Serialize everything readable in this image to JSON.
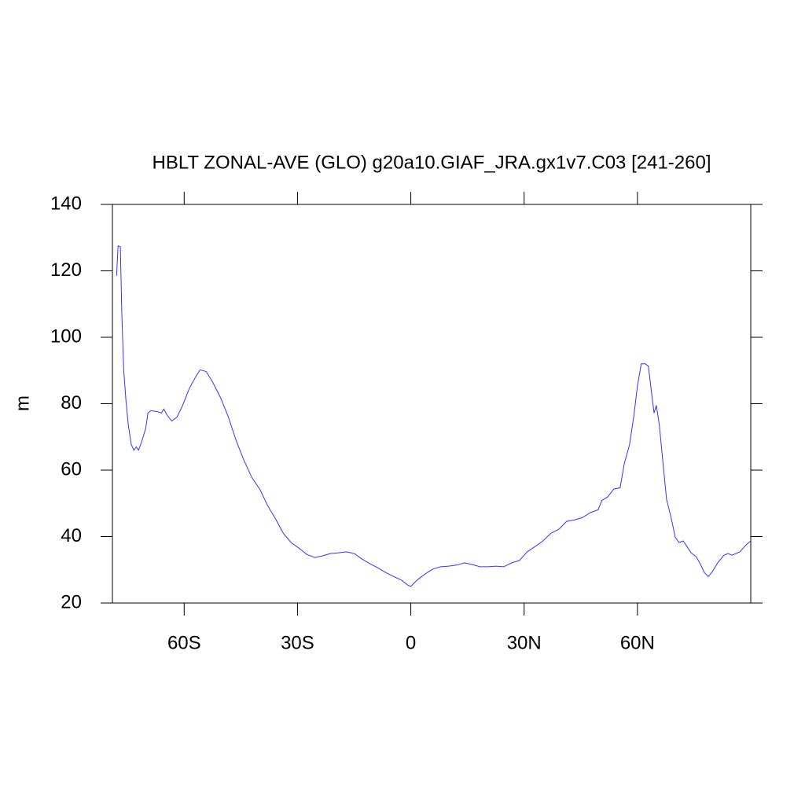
{
  "chart_data": {
    "type": "line",
    "title": "HBLT ZONAL-AVE (GLO) g20a10.GIAF_JRA.gx1v7.C03 [241-260]",
    "y_label": "m",
    "xlim": [
      -79,
      90
    ],
    "ylim": [
      20,
      140
    ],
    "xticks": [
      {
        "value": -60,
        "label": "60S"
      },
      {
        "value": -30,
        "label": "30S"
      },
      0,
      {
        "value": 30,
        "label": "30N"
      },
      {
        "value": 60,
        "label": "60N"
      }
    ],
    "yticks": [
      20,
      40,
      60,
      80,
      100,
      120,
      140
    ],
    "series": [
      {
        "color": "#3333ff",
        "x": [
          -77.9,
          -77.5,
          -76.9,
          -76.5,
          -76,
          -75.4,
          -74.8,
          -74,
          -73.3,
          -72.7,
          -72.1,
          -71.3,
          -70.2,
          -69.6,
          -68.8,
          -67.1,
          -66,
          -65.4,
          -64.6,
          -63.3,
          -61.9,
          -60.4,
          -58.75,
          -57.1,
          -55.8,
          -54.2,
          -52.5,
          -50.4,
          -48.3,
          -46.25,
          -44.2,
          -42.1,
          -40,
          -37.9,
          -35.8,
          -33.75,
          -31.7,
          -29.6,
          -27.5,
          -25.4,
          -23.3,
          -21.25,
          -19.2,
          -17.1,
          -15,
          -12.9,
          -10.8,
          -8.75,
          -6.7,
          -4.6,
          -2.5,
          -0.8,
          0,
          1.7,
          3.75,
          5.8,
          7.9,
          10,
          12.1,
          14.2,
          16.25,
          18.3,
          20.4,
          22.5,
          24.6,
          26.7,
          28.75,
          30.8,
          32.9,
          35,
          37.1,
          39.2,
          41.25,
          43.3,
          45.4,
          47.5,
          49.6,
          50.6,
          52.1,
          53.75,
          55.4,
          56.5,
          57.9,
          59,
          60,
          61,
          62.1,
          62.9,
          63.75,
          64.4,
          65,
          65.8,
          66.7,
          67.7,
          69,
          70,
          71,
          72.1,
          73.1,
          74.2,
          75.6,
          76.7,
          77.7,
          78.75,
          79.8,
          81.25,
          82.9,
          84,
          85,
          87.1,
          88.75,
          90
        ],
        "values": [
          118.5,
          127.5,
          127.3,
          106.7,
          90,
          80.7,
          73.6,
          67.7,
          66,
          67,
          66,
          68.4,
          72.5,
          77.2,
          77.9,
          77.6,
          77.2,
          78.4,
          76.7,
          74.8,
          76,
          79.5,
          84.3,
          87.8,
          90.2,
          89.7,
          86.6,
          81.9,
          76,
          68.9,
          63,
          57.8,
          54.3,
          49.3,
          45.3,
          41,
          38.2,
          36.5,
          34.6,
          33.7,
          34.2,
          34.9,
          35.1,
          35.4,
          34.9,
          33.2,
          31.8,
          30.6,
          29.2,
          28,
          26.9,
          25.4,
          25,
          26.9,
          28.7,
          30.2,
          30.9,
          31.1,
          31.4,
          32.1,
          31.6,
          30.9,
          30.9,
          31.1,
          30.9,
          32.1,
          32.8,
          35.4,
          37,
          38.7,
          41,
          42.2,
          44.6,
          45,
          45.7,
          47.2,
          48.1,
          50.9,
          51.9,
          54.3,
          54.7,
          61.8,
          67.7,
          76,
          85.4,
          92,
          92,
          91.3,
          83.1,
          77.2,
          79.5,
          73.6,
          63,
          51.2,
          45.3,
          39.8,
          38.2,
          38.7,
          37,
          35.1,
          33.9,
          31.6,
          29.2,
          28,
          29.4,
          32.1,
          34.4,
          34.9,
          34.4,
          35.4,
          37.5,
          38.7
        ]
      }
    ]
  }
}
